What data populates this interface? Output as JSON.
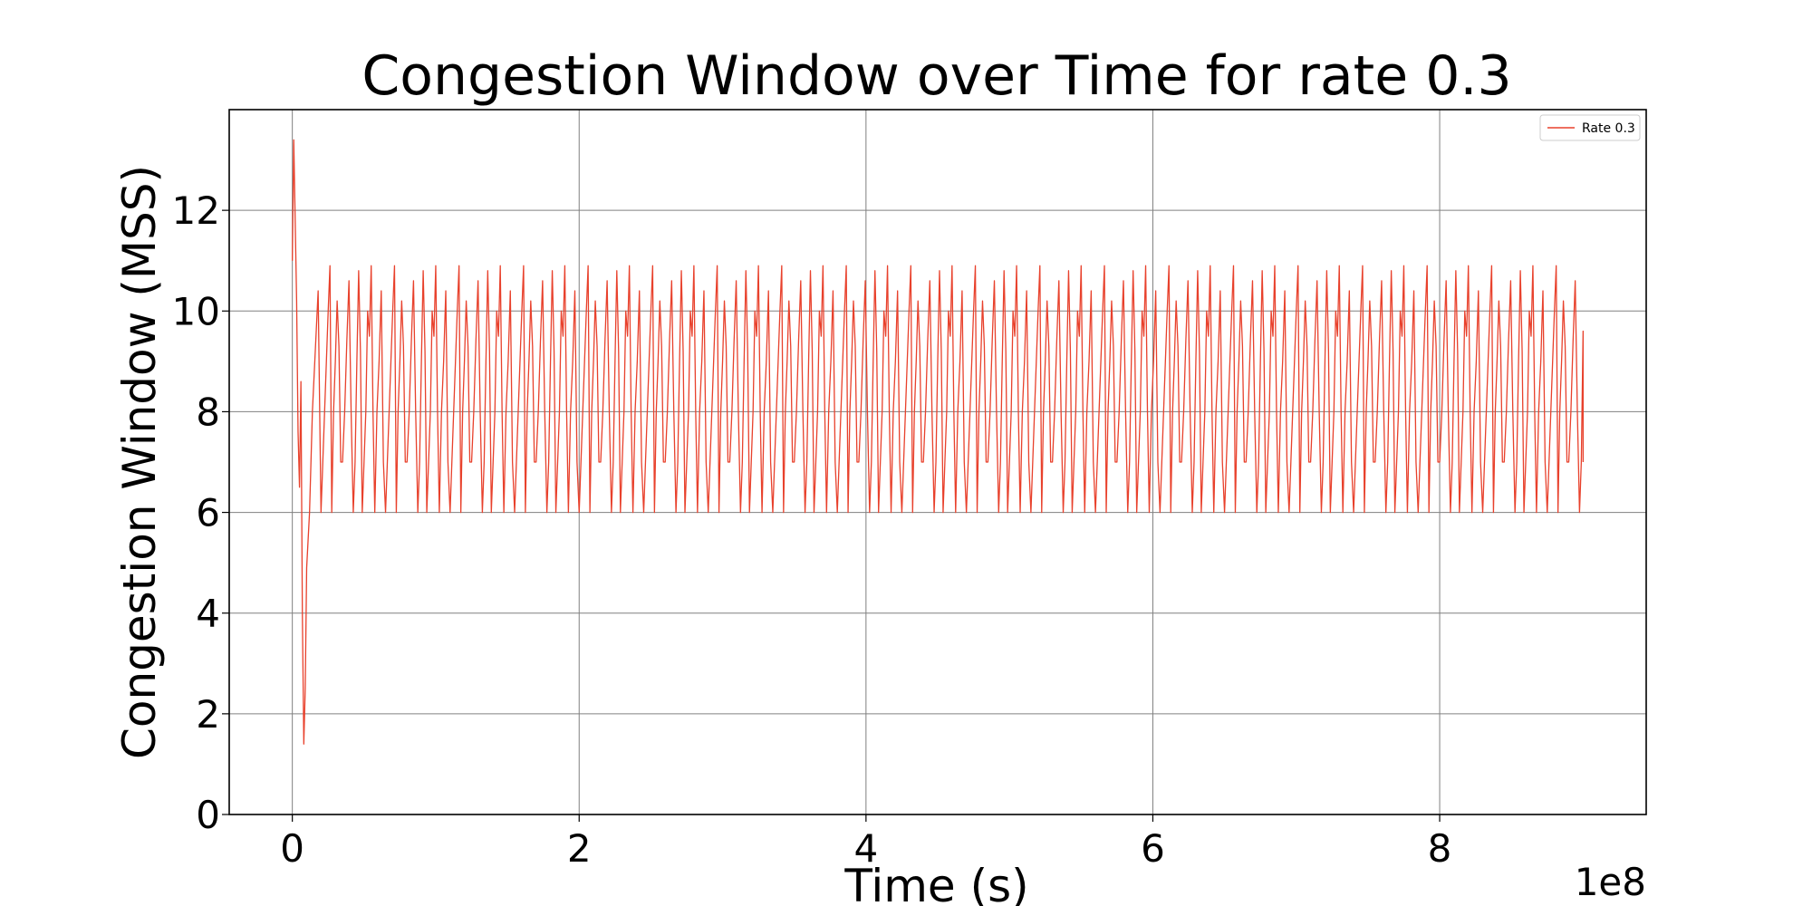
{
  "chart_data": {
    "type": "line",
    "title": "Congestion Window over Time for rate 0.3",
    "xlabel": "Time (s)",
    "ylabel": "Congestion Window (MSS)",
    "x_offset_label": "1e8",
    "xlim": [
      -0.44,
      9.44
    ],
    "ylim": [
      0,
      14
    ],
    "x_ticks": [
      0,
      2,
      4,
      6,
      8
    ],
    "x_tick_labels": [
      "0",
      "2",
      "4",
      "6",
      "8"
    ],
    "y_ticks": [
      0,
      2,
      4,
      6,
      8,
      10,
      12
    ],
    "y_tick_labels": [
      "0",
      "2",
      "4",
      "6",
      "8",
      "10",
      "12"
    ],
    "grid": true,
    "legend_position": "top-right",
    "series": [
      {
        "name": "Rate 0.3",
        "color": "#e8412c",
        "x_start": 0,
        "x_end": 9.0,
        "initial_phase": [
          [
            0.0,
            11.0
          ],
          [
            0.01,
            13.4
          ],
          [
            0.02,
            11.8
          ],
          [
            0.03,
            10.2
          ],
          [
            0.04,
            7.6
          ],
          [
            0.05,
            6.5
          ],
          [
            0.06,
            8.6
          ],
          [
            0.07,
            4.0
          ],
          [
            0.08,
            1.4
          ],
          [
            0.09,
            2.5
          ],
          [
            0.1,
            4.9
          ],
          [
            0.12,
            6.0
          ],
          [
            0.14,
            8.0
          ],
          [
            0.16,
            9.2
          ],
          [
            0.18,
            10.4
          ]
        ],
        "steady_state": {
          "min": 6,
          "max": 11,
          "typical_peak": 10.9,
          "levels": [
            6,
            7,
            8,
            9,
            10,
            11
          ],
          "period": 0.075
        },
        "final_value": 7.0
      }
    ]
  }
}
